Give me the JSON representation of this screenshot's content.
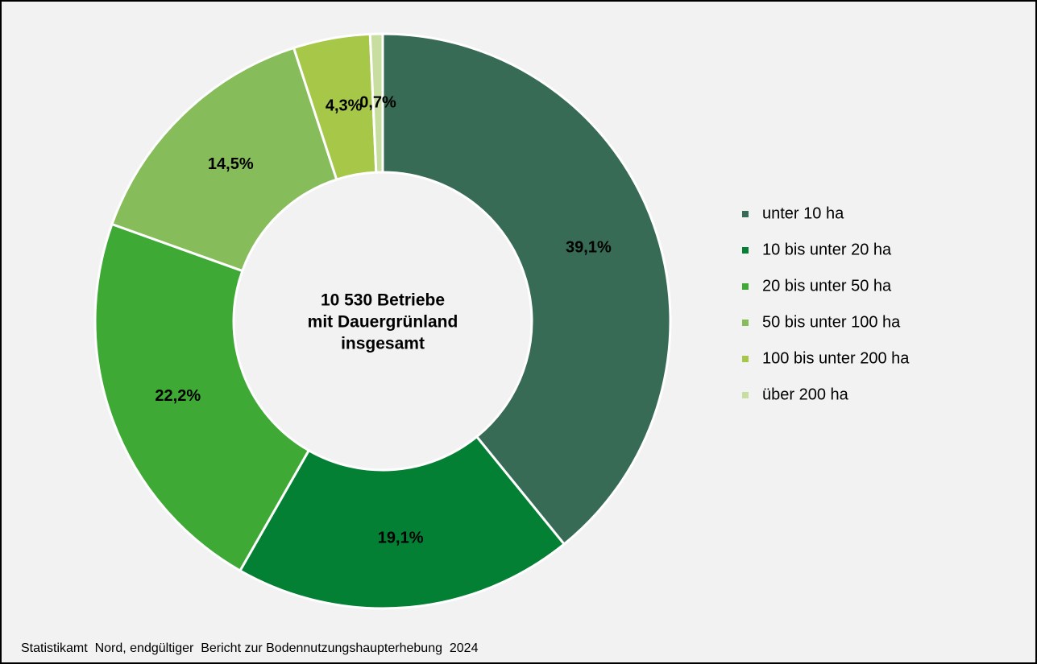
{
  "chart_data": {
    "type": "donut",
    "center_label": [
      "10 530 Betriebe",
      "mit Dauergrünland",
      "insgesamt"
    ],
    "categories": [
      "unter 10 ha",
      "10 bis unter 20 ha",
      "20 bis unter 50 ha",
      "50 bis unter 100 ha",
      "100 bis unter 200 ha",
      "über 200 ha"
    ],
    "values": [
      39.1,
      19.1,
      22.2,
      14.5,
      4.3,
      0.7
    ],
    "value_labels": [
      "39,1%",
      "19,1%",
      "22,2%",
      "14,5%",
      "4,3%",
      "0,7%"
    ],
    "colors": [
      "#376b55",
      "#038033",
      "#3fa935",
      "#86bc5a",
      "#a6c748",
      "#c8dea0"
    ],
    "legend": "right",
    "source": "Statistikamt  Nord, endgültiger  Bericht zur Bodennutzungshaupterhebung  2024"
  }
}
